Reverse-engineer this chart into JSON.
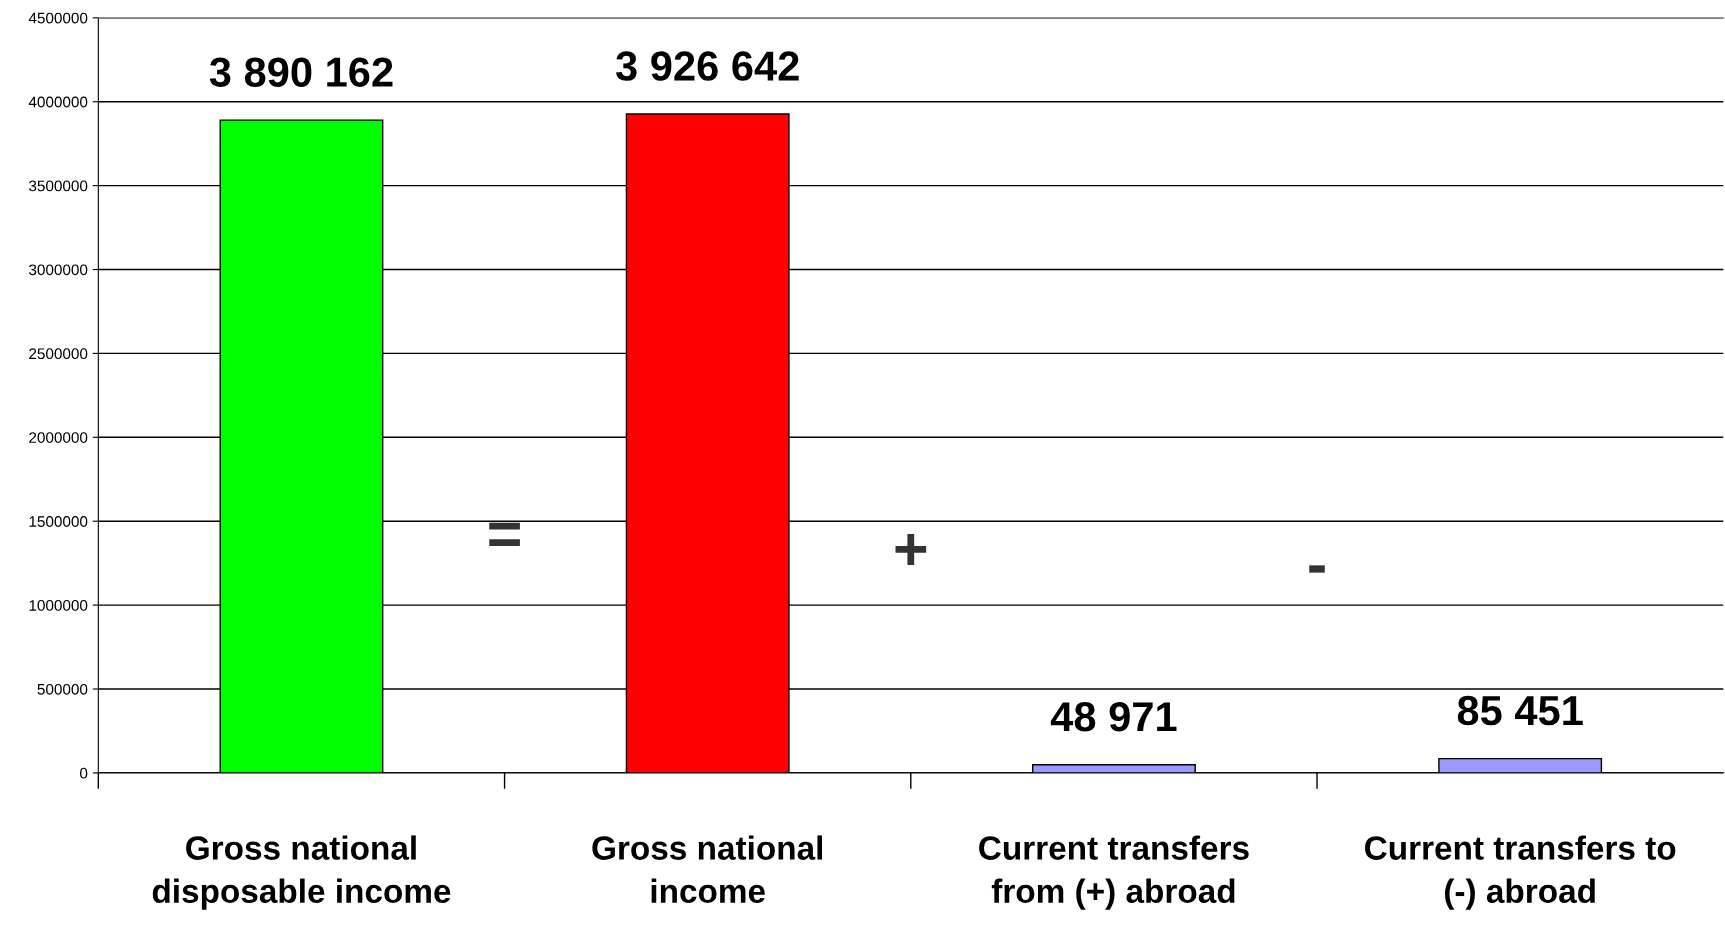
{
  "chart_data": {
    "type": "bar",
    "categories": [
      "Gross national\ndisposable income",
      "Gross national\nincome",
      "Current transfers\nfrom (+) abroad",
      "Current transfers to\n(-) abroad"
    ],
    "values": [
      3890162,
      3926642,
      48971,
      85451
    ],
    "colors": [
      "#00ff00",
      "#ff0000",
      "#9999ff",
      "#9999ff"
    ],
    "value_labels": [
      "3 890 162",
      "3 926 642",
      "48 971",
      "85 451"
    ],
    "annotations": [
      "=",
      "+",
      "-"
    ],
    "ylim": [
      0,
      4500000
    ],
    "yticks": [
      0,
      500000,
      1000000,
      1500000,
      2000000,
      2500000,
      3000000,
      3500000,
      4000000,
      4500000
    ],
    "grid": "y"
  }
}
